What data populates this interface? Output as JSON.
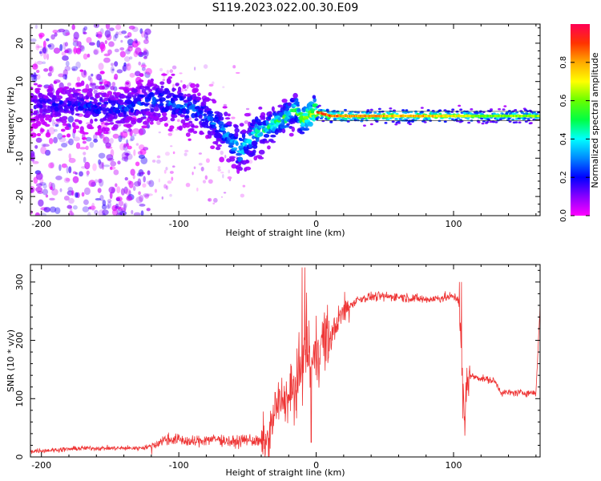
{
  "chart_data": [
    {
      "type": "heatmap",
      "title": "S119.2023.022.00.30.E09",
      "xlabel": "Height of straight line (km)",
      "ylabel": "Frequency (Hz)",
      "xlim": [
        -208,
        163
      ],
      "ylim": [
        -25,
        25
      ],
      "xticks": [
        -200,
        -100,
        0,
        100
      ],
      "yticks": [
        -20,
        -10,
        0,
        10,
        20
      ],
      "grid": false,
      "colorbar": {
        "label": "Normalized spectral amplitude",
        "range": [
          0,
          1
        ],
        "ticks": [
          "0.0",
          "0.2",
          "0.4",
          "0.6",
          "0.8"
        ],
        "tick_values": [
          0,
          0.2,
          0.4,
          0.6,
          0.8
        ],
        "colormap": "gist_rainbow_r"
      },
      "trace": {
        "x": [
          -200,
          -180,
          -160,
          -140,
          -120,
          -110,
          -100,
          -90,
          -80,
          -70,
          -60,
          -55,
          -50,
          -45,
          -40,
          -30,
          -20,
          -15,
          -10,
          -5,
          0,
          10,
          20,
          40,
          60,
          80,
          100,
          110,
          120,
          140,
          163
        ],
        "y": [
          4,
          4,
          3,
          3,
          5,
          5,
          4,
          3,
          1,
          -2,
          -6,
          -8,
          -6,
          -4,
          -3,
          -1,
          1,
          3,
          0,
          1,
          2,
          1,
          1,
          1,
          1,
          1,
          1,
          1,
          1,
          1,
          1
        ],
        "amplitude": [
          0.2,
          0.22,
          0.25,
          0.25,
          0.3,
          0.3,
          0.32,
          0.32,
          0.3,
          0.35,
          0.4,
          0.45,
          0.4,
          0.45,
          0.5,
          0.55,
          0.6,
          0.55,
          0.7,
          0.8,
          0.9,
          0.9,
          0.85,
          0.85,
          0.8,
          0.8,
          0.75,
          0.7,
          0.6,
          0.65,
          0.65
        ]
      }
    },
    {
      "type": "line",
      "xlabel": "Height of straight line (km)",
      "ylabel": "SNR (10 * v/v)",
      "xlim": [
        -208,
        163
      ],
      "ylim": [
        0,
        330
      ],
      "xticks": [
        -200,
        -100,
        0,
        100
      ],
      "yticks": [
        0,
        100,
        200,
        300
      ],
      "grid": false,
      "color": "#ee3333",
      "series": [
        {
          "x": [
            -208,
            -190,
            -170,
            -150,
            -130,
            -120,
            -110,
            -100,
            -90,
            -80,
            -70,
            -60,
            -50,
            -40,
            -35,
            -30,
            -25,
            -20,
            -15,
            -10,
            -7,
            -5,
            -3,
            0,
            5,
            10,
            15,
            20,
            30,
            40,
            60,
            80,
            100,
            104,
            106,
            108,
            110,
            120,
            130,
            135,
            140,
            150,
            160,
            163
          ],
          "y": [
            10,
            12,
            15,
            15,
            15,
            18,
            30,
            30,
            25,
            30,
            30,
            25,
            30,
            25,
            25,
            80,
            100,
            100,
            120,
            150,
            200,
            170,
            160,
            180,
            200,
            200,
            230,
            250,
            270,
            275,
            275,
            270,
            275,
            270,
            150,
            50,
            140,
            135,
            130,
            110,
            110,
            110,
            110,
            260
          ]
        }
      ]
    }
  ]
}
